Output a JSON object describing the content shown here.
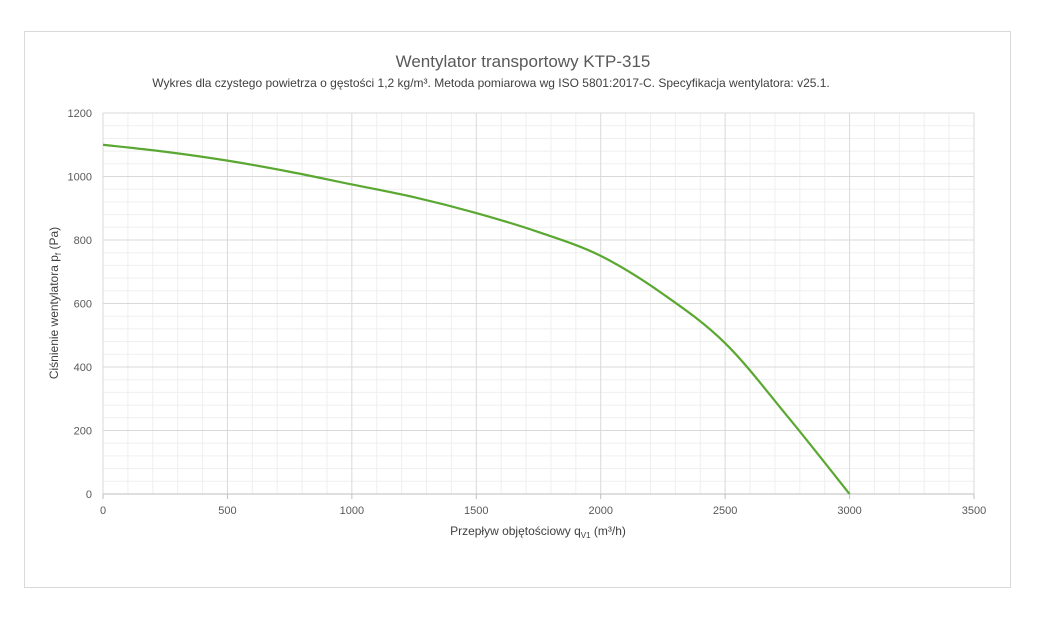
{
  "chart_data": {
    "type": "line",
    "title": "Wentylator transportowy KTP-315",
    "subtitle": "Wykres dla czystego powietrza o gęstości 1,2 kg/m³. Metoda pomiarowa wg ISO 5801:2017-C. Specyfikacja wentylatora: v25.1.",
    "xlabel": "Przepływ objętościowy q",
    "xlabel_sub": "V1",
    "xlabel_unit": " (m³/h)",
    "ylabel": "Ciśnienie wentylatora p",
    "ylabel_sub": "f",
    "ylabel_unit": " (Pa)",
    "xlim": [
      0,
      3500
    ],
    "ylim": [
      0,
      1200
    ],
    "x_ticks": [
      0,
      500,
      1000,
      1500,
      2000,
      2500,
      3000,
      3500
    ],
    "y_ticks": [
      0,
      200,
      400,
      600,
      800,
      1000,
      1200
    ],
    "grid": true,
    "series": [
      {
        "color": "#5aa832",
        "x": [
          0,
          250,
          500,
          750,
          1000,
          1250,
          1500,
          1750,
          2000,
          2250,
          2500,
          2750,
          3000
        ],
        "y": [
          1100,
          1078,
          1050,
          1015,
          975,
          935,
          885,
          825,
          750,
          630,
          475,
          245,
          0
        ]
      }
    ]
  }
}
